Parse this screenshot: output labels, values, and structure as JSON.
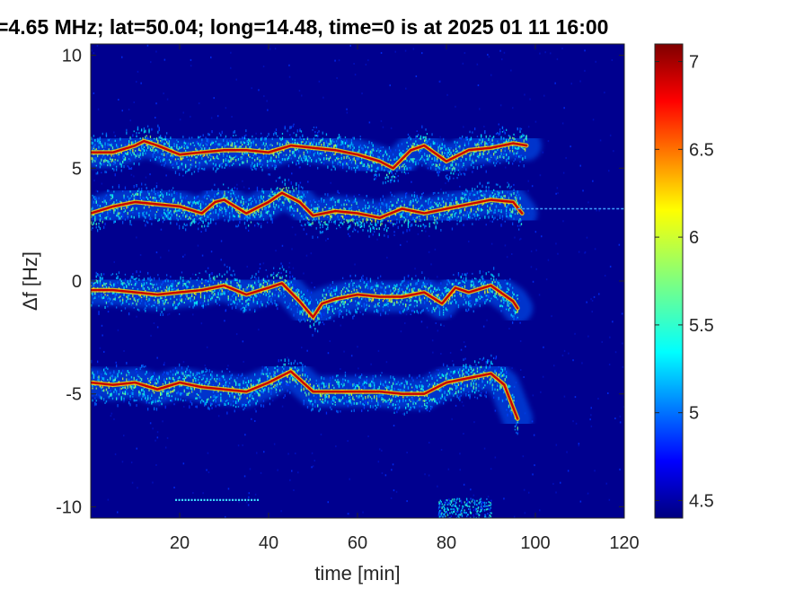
{
  "chart_data": {
    "type": "heatmap",
    "title": "=4.65 MHz;  lat=50.04; long=14.48, time=0 is at 2025 01 11 16:00",
    "xlabel": "time [min]",
    "ylabel": "Δf [Hz]",
    "xlim": [
      0,
      120
    ],
    "ylim": [
      -10.5,
      10.5
    ],
    "xticks": [
      20,
      40,
      60,
      80,
      100,
      120
    ],
    "xtick_labels": [
      "20",
      "40",
      "60",
      "80",
      "100",
      "120"
    ],
    "yticks": [
      -10,
      -5,
      0,
      5,
      10
    ],
    "ytick_labels": [
      "-10",
      "-5",
      "0",
      "5",
      "10"
    ],
    "colorbar": {
      "range": [
        4.4,
        7.1
      ],
      "ticks": [
        4.5,
        5,
        5.5,
        6,
        6.5,
        7
      ],
      "tick_labels": [
        "4.5",
        "5",
        "5.5",
        "6",
        "6.5",
        "7"
      ],
      "colormap": "jet"
    },
    "background_color": "#00008f",
    "series": [
      {
        "x": [
          0,
          5,
          10,
          12,
          15,
          20,
          25,
          30,
          35,
          40,
          45,
          50,
          55,
          60,
          65,
          68,
          72,
          75,
          80,
          85,
          90,
          95,
          98
        ],
        "y": [
          5.7,
          5.7,
          6.0,
          6.2,
          6.0,
          5.6,
          5.7,
          5.8,
          5.8,
          5.7,
          6.0,
          5.9,
          5.8,
          5.6,
          5.3,
          5.0,
          5.8,
          6.0,
          5.3,
          5.8,
          5.9,
          6.1,
          6.0
        ]
      },
      {
        "x": [
          0,
          5,
          10,
          15,
          20,
          25,
          28,
          30,
          35,
          40,
          43,
          47,
          50,
          55,
          60,
          65,
          70,
          75,
          80,
          85,
          90,
          95,
          97
        ],
        "y": [
          3.0,
          3.3,
          3.5,
          3.4,
          3.3,
          3.0,
          3.5,
          3.6,
          3.0,
          3.5,
          3.9,
          3.5,
          2.9,
          3.1,
          3.0,
          2.8,
          3.2,
          3.0,
          3.2,
          3.4,
          3.6,
          3.5,
          3.0
        ]
      },
      {
        "x": [
          0,
          5,
          10,
          15,
          20,
          25,
          30,
          35,
          40,
          43,
          47,
          50,
          52,
          55,
          60,
          65,
          70,
          75,
          79,
          82,
          85,
          90,
          95,
          96
        ],
        "y": [
          -0.4,
          -0.4,
          -0.5,
          -0.6,
          -0.5,
          -0.4,
          -0.2,
          -0.6,
          -0.3,
          -0.1,
          -0.9,
          -1.6,
          -1.0,
          -0.8,
          -0.6,
          -0.7,
          -0.7,
          -0.5,
          -1.0,
          -0.3,
          -0.5,
          -0.2,
          -0.9,
          -1.2
        ]
      },
      {
        "x": [
          0,
          5,
          10,
          15,
          20,
          25,
          30,
          35,
          40,
          45,
          50,
          55,
          60,
          65,
          70,
          75,
          80,
          85,
          90,
          93,
          96
        ],
        "y": [
          -4.5,
          -4.6,
          -4.5,
          -4.8,
          -4.5,
          -4.7,
          -4.8,
          -4.9,
          -4.5,
          -4.0,
          -4.9,
          -4.9,
          -4.9,
          -4.9,
          -5.0,
          -5.0,
          -4.5,
          -4.3,
          -4.1,
          -4.6,
          -6.1
        ]
      }
    ],
    "extra_features": [
      {
        "kind": "horizontal-dashed-line",
        "y": 3.2,
        "x_range": [
          95,
          120
        ]
      },
      {
        "kind": "short-segment",
        "y": -9.7,
        "x_range": [
          19,
          38
        ]
      },
      {
        "kind": "noise-patch",
        "x_range": [
          78,
          90
        ],
        "y_range": [
          -10.5,
          -9.6
        ]
      }
    ]
  }
}
